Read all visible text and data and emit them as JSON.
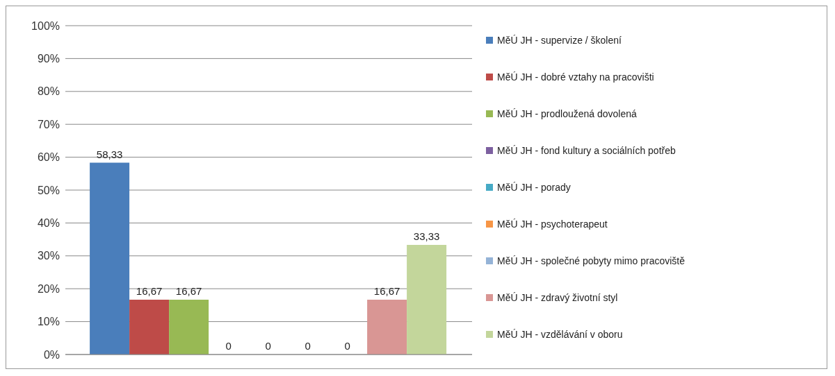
{
  "chart_data": {
    "type": "bar",
    "categories": [
      null
    ],
    "ylim": [
      0,
      100
    ],
    "yticks": [
      {
        "value": 0,
        "label": "0%"
      },
      {
        "value": 10,
        "label": "10%"
      },
      {
        "value": 20,
        "label": "20%"
      },
      {
        "value": 30,
        "label": "30%"
      },
      {
        "value": 40,
        "label": "40%"
      },
      {
        "value": 50,
        "label": "50%"
      },
      {
        "value": 60,
        "label": "60%"
      },
      {
        "value": 70,
        "label": "70%"
      },
      {
        "value": 80,
        "label": "80%"
      },
      {
        "value": 90,
        "label": "90%"
      },
      {
        "value": 100,
        "label": "100%"
      }
    ],
    "grid": "y",
    "legend": "right",
    "series": [
      {
        "name": "MěÚ JH - supervize / školení",
        "color": "#4a7ebb",
        "values": [
          58.33
        ],
        "value_labels": [
          "58,33"
        ]
      },
      {
        "name": "MěÚ JH - dobré vztahy na pracovišti",
        "color": "#be4b48",
        "values": [
          16.67
        ],
        "value_labels": [
          "16,67"
        ]
      },
      {
        "name": "MěÚ JH - prodloužená dovolená",
        "color": "#98b954",
        "values": [
          16.67
        ],
        "value_labels": [
          "16,67"
        ]
      },
      {
        "name": "MěÚ JH - fond kultury a sociálních potřeb",
        "color": "#7d60a0",
        "values": [
          0
        ],
        "value_labels": [
          "0"
        ]
      },
      {
        "name": "MěÚ JH - porady",
        "color": "#46aac5",
        "values": [
          0
        ],
        "value_labels": [
          "0"
        ]
      },
      {
        "name": "MěÚ JH - psychoterapeut",
        "color": "#f79646",
        "values": [
          0
        ],
        "value_labels": [
          "0"
        ]
      },
      {
        "name": "MěÚ JH - společné pobyty mimo  pracoviště",
        "color": "#95b3d7",
        "values": [
          0
        ],
        "value_labels": [
          "0"
        ]
      },
      {
        "name": "MěÚ JH - zdravý životní styl",
        "color": "#d99694",
        "values": [
          16.67
        ],
        "value_labels": [
          "16,67"
        ]
      },
      {
        "name": "MěÚ JH - vzdělávání v oboru",
        "color": "#c3d69b",
        "values": [
          33.33
        ],
        "value_labels": [
          "33,33"
        ]
      }
    ]
  }
}
